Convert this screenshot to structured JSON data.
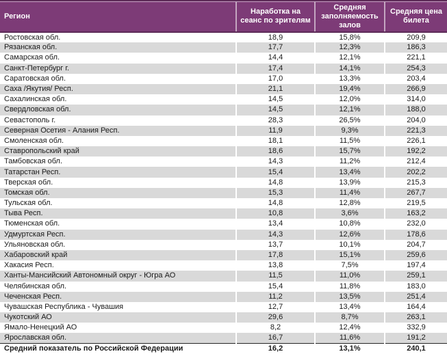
{
  "colors": {
    "header_bg": "#7d3b77",
    "header_border": "#5d2b58",
    "header_light": "#c9a2c6",
    "stripe": "#d9d9d9",
    "text": "#1a1a1a"
  },
  "chart_data": {
    "type": "table",
    "title": "",
    "legend_position": "none",
    "columns": [
      "Регион",
      "Наработка на сеанс по зрителям",
      "Средняя заполняемость залов",
      "Средняя цена билета"
    ],
    "rows": [
      [
        "Ростовская обл.",
        "18,9",
        "15,8%",
        "209,9"
      ],
      [
        "Рязанская обл.",
        "17,7",
        "12,3%",
        "186,3"
      ],
      [
        "Самарская обл.",
        "14,4",
        "12,1%",
        "221,1"
      ],
      [
        "Санкт-Петербург г.",
        "17,4",
        "14,1%",
        "254,3"
      ],
      [
        "Саратовская обл.",
        "17,0",
        "13,3%",
        "203,4"
      ],
      [
        "Саха /Якутия/ Респ.",
        "21,1",
        "19,4%",
        "266,9"
      ],
      [
        "Сахалинская обл.",
        "14,5",
        "12,0%",
        "314,0"
      ],
      [
        "Свердловская обл.",
        "14,5",
        "12,1%",
        "188,0"
      ],
      [
        "Севастополь г.",
        "28,3",
        "26,5%",
        "204,0"
      ],
      [
        "Северная Осетия - Алания Респ.",
        "11,9",
        "9,3%",
        "221,3"
      ],
      [
        "Смоленская обл.",
        "18,1",
        "11,5%",
        "226,1"
      ],
      [
        "Ставропольский край",
        "18,6",
        "15,7%",
        "192,2"
      ],
      [
        "Тамбовская обл.",
        "14,3",
        "11,2%",
        "212,4"
      ],
      [
        "Татарстан Респ.",
        "15,4",
        "13,4%",
        "202,2"
      ],
      [
        "Тверская обл.",
        "14,8",
        "13,9%",
        "215,3"
      ],
      [
        "Томская обл.",
        "15,3",
        "11,4%",
        "267,7"
      ],
      [
        "Тульская обл.",
        "14,8",
        "12,8%",
        "219,5"
      ],
      [
        "Тыва Респ.",
        "10,8",
        "3,6%",
        "163,2"
      ],
      [
        "Тюменская обл.",
        "13,4",
        "10,8%",
        "232,0"
      ],
      [
        "Удмуртская Респ.",
        "14,3",
        "12,6%",
        "178,6"
      ],
      [
        "Ульяновская обл.",
        "13,7",
        "10,1%",
        "204,7"
      ],
      [
        "Хабаровский край",
        "17,8",
        "15,1%",
        "259,6"
      ],
      [
        "Хакасия Респ.",
        "13,8",
        "7,5%",
        "197,4"
      ],
      [
        "Ханты-Мансийский Автономный округ - Югра АО",
        "11,5",
        "11,0%",
        "259,1"
      ],
      [
        "Челябинская обл.",
        "15,4",
        "11,8%",
        "183,0"
      ],
      [
        "Чеченская Респ.",
        "11,2",
        "13,5%",
        "251,4"
      ],
      [
        "Чувашская Республика - Чувашия",
        "12,7",
        "13,4%",
        "164,4"
      ],
      [
        "Чукотский АО",
        "29,6",
        "8,7%",
        "263,1"
      ],
      [
        "Ямало-Ненецкий АО",
        "8,2",
        "12,4%",
        "332,9"
      ],
      [
        "Ярославская обл.",
        "16,7",
        "11,6%",
        "191,2"
      ]
    ],
    "total_row": [
      "Средний показатель по Российской Федерации",
      "16,2",
      "13,1%",
      "240,1"
    ]
  }
}
